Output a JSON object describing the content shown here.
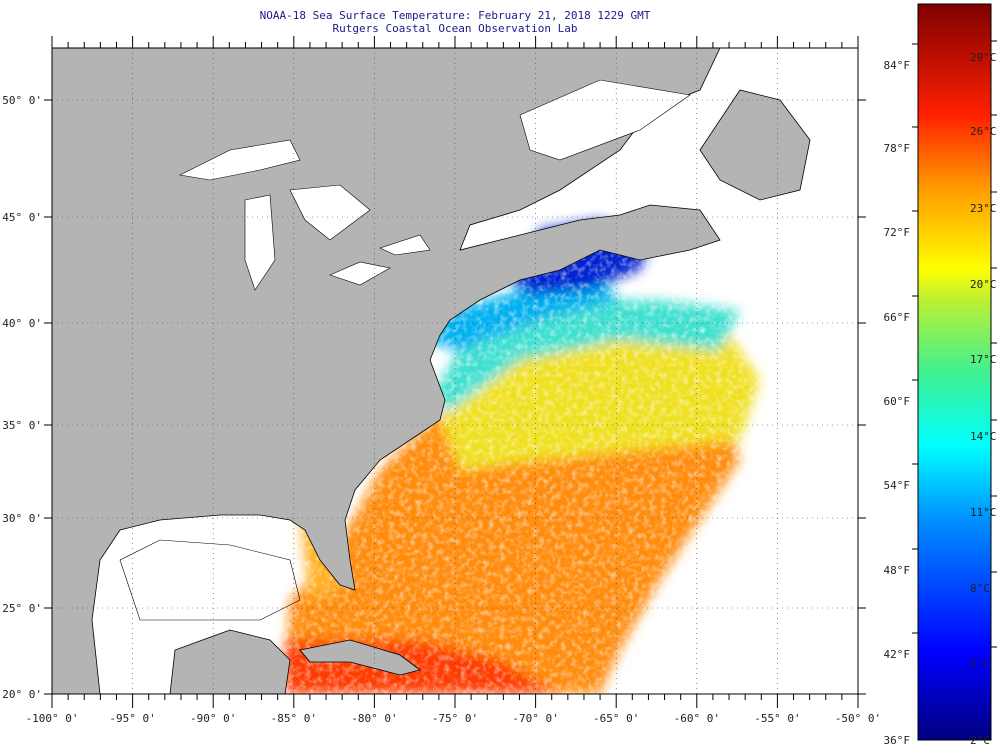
{
  "header": {
    "title": "NOAA-18 Sea Surface Temperature:  February 21, 2018 1229 GMT",
    "subtitle": "Rutgers Coastal Ocean Observation Lab"
  },
  "map": {
    "lon_labels": [
      "-100° 0'",
      "-95° 0'",
      "-90° 0'",
      "-85° 0'",
      "-80° 0'",
      "-75° 0'",
      "-70° 0'",
      "-65° 0'",
      "-60° 0'",
      "-55° 0'",
      "-50° 0'"
    ],
    "lat_labels": [
      "50° 0'",
      "45° 0'",
      "40° 0'",
      "35° 0'",
      "30° 0'",
      "25° 0'",
      "20° 0'"
    ],
    "colors": {
      "land": "#b4b4b4",
      "water_nodata": "#ffffff",
      "title": "#1a1a8c"
    }
  },
  "colorbar": {
    "fahrenheit": [
      "84°F",
      "78°F",
      "72°F",
      "66°F",
      "60°F",
      "54°F",
      "48°F",
      "42°F",
      "36°F"
    ],
    "celsius": [
      "29°C",
      "26°C",
      "23°C",
      "20°C",
      "17°C",
      "14°C",
      "11°C",
      "8°C",
      "5°C",
      "2°C"
    ]
  }
}
